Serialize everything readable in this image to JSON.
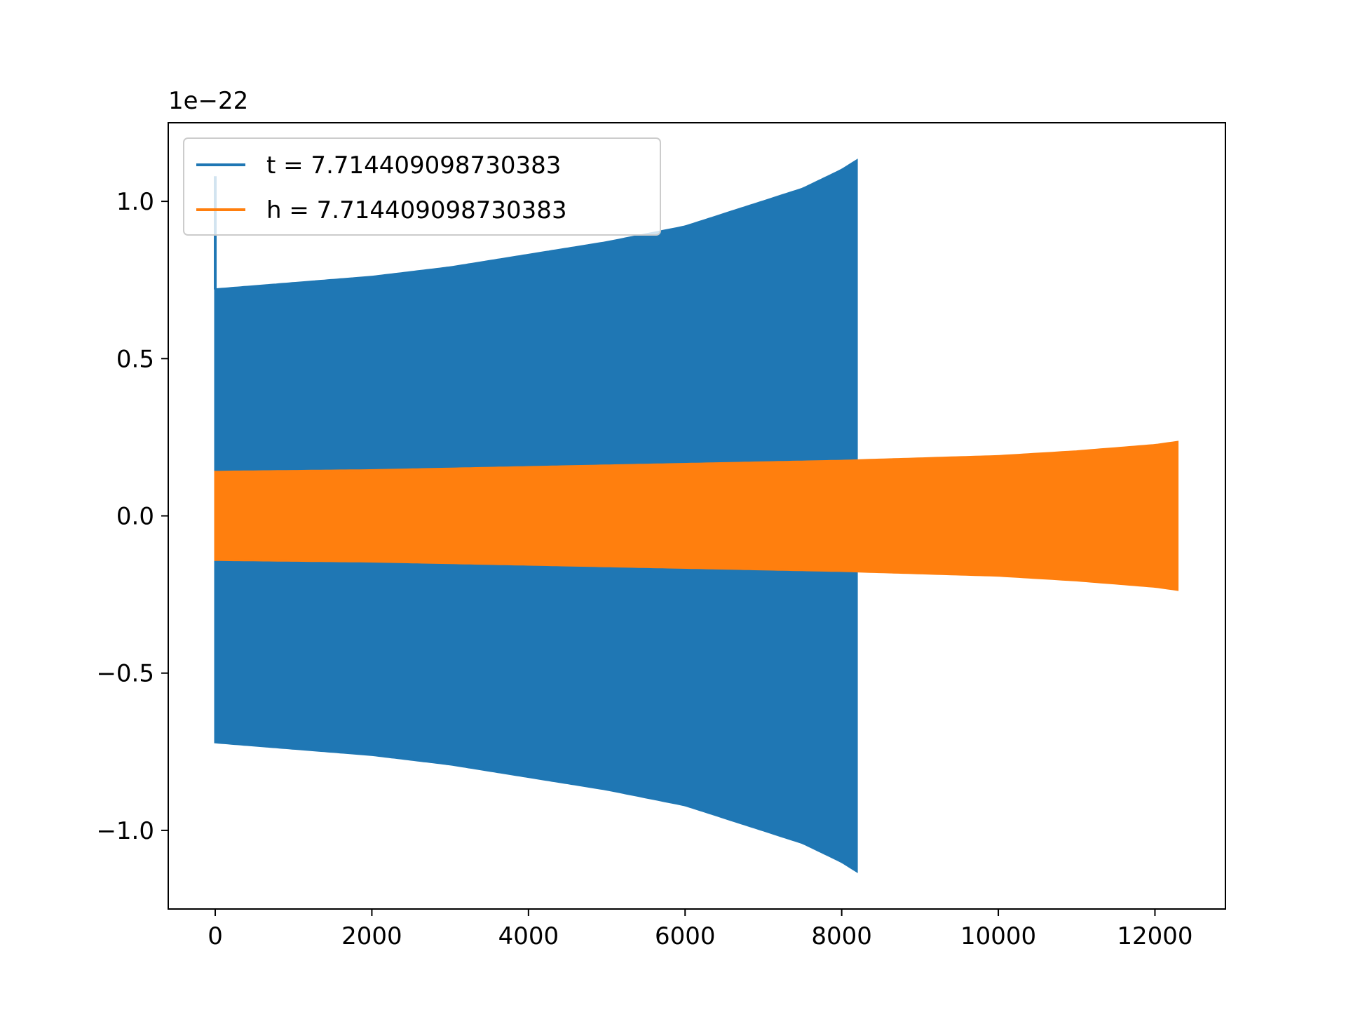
{
  "chart_data": {
    "type": "line",
    "title": "",
    "xlabel": "",
    "ylabel": "",
    "y_offset_label": "1e−22",
    "xlim": [
      -600,
      12900
    ],
    "ylim": [
      -1.25,
      1.25
    ],
    "x_ticks": [
      0,
      2000,
      4000,
      6000,
      8000,
      10000,
      12000
    ],
    "x_tick_labels": [
      "0",
      "2000",
      "4000",
      "6000",
      "8000",
      "10000",
      "12000"
    ],
    "y_ticks": [
      -1.0,
      -0.5,
      0.0,
      0.5,
      1.0
    ],
    "y_tick_labels": [
      "−1.0",
      "−0.5",
      "0.0",
      "0.5",
      "1.0"
    ],
    "grid": false,
    "legend_position": "top-left",
    "series": [
      {
        "name": "t = 7.714409098730383",
        "color": "#1f77b4",
        "x_start": 0,
        "x_end": 8192,
        "envelope": {
          "x": [
            0,
            1000,
            2000,
            3000,
            4000,
            5000,
            6000,
            7000,
            7500,
            8000,
            8192
          ],
          "upper": [
            0.72,
            0.74,
            0.76,
            0.79,
            0.83,
            0.87,
            0.92,
            1.0,
            1.04,
            1.1,
            1.13
          ],
          "lower": [
            -0.72,
            -0.74,
            -0.76,
            -0.79,
            -0.83,
            -0.87,
            -0.92,
            -1.0,
            -1.04,
            -1.1,
            -1.13
          ]
        },
        "start_spike": 1.08
      },
      {
        "name": "h = 7.714409098730383",
        "color": "#ff7f0e",
        "x_start": 0,
        "x_end": 12288,
        "envelope": {
          "x": [
            0,
            2000,
            4000,
            6000,
            8000,
            10000,
            11000,
            12000,
            12288
          ],
          "upper": [
            0.14,
            0.145,
            0.155,
            0.165,
            0.175,
            0.19,
            0.205,
            0.225,
            0.235
          ],
          "lower": [
            -0.14,
            -0.145,
            -0.155,
            -0.165,
            -0.175,
            -0.19,
            -0.205,
            -0.225,
            -0.235
          ]
        }
      }
    ]
  }
}
